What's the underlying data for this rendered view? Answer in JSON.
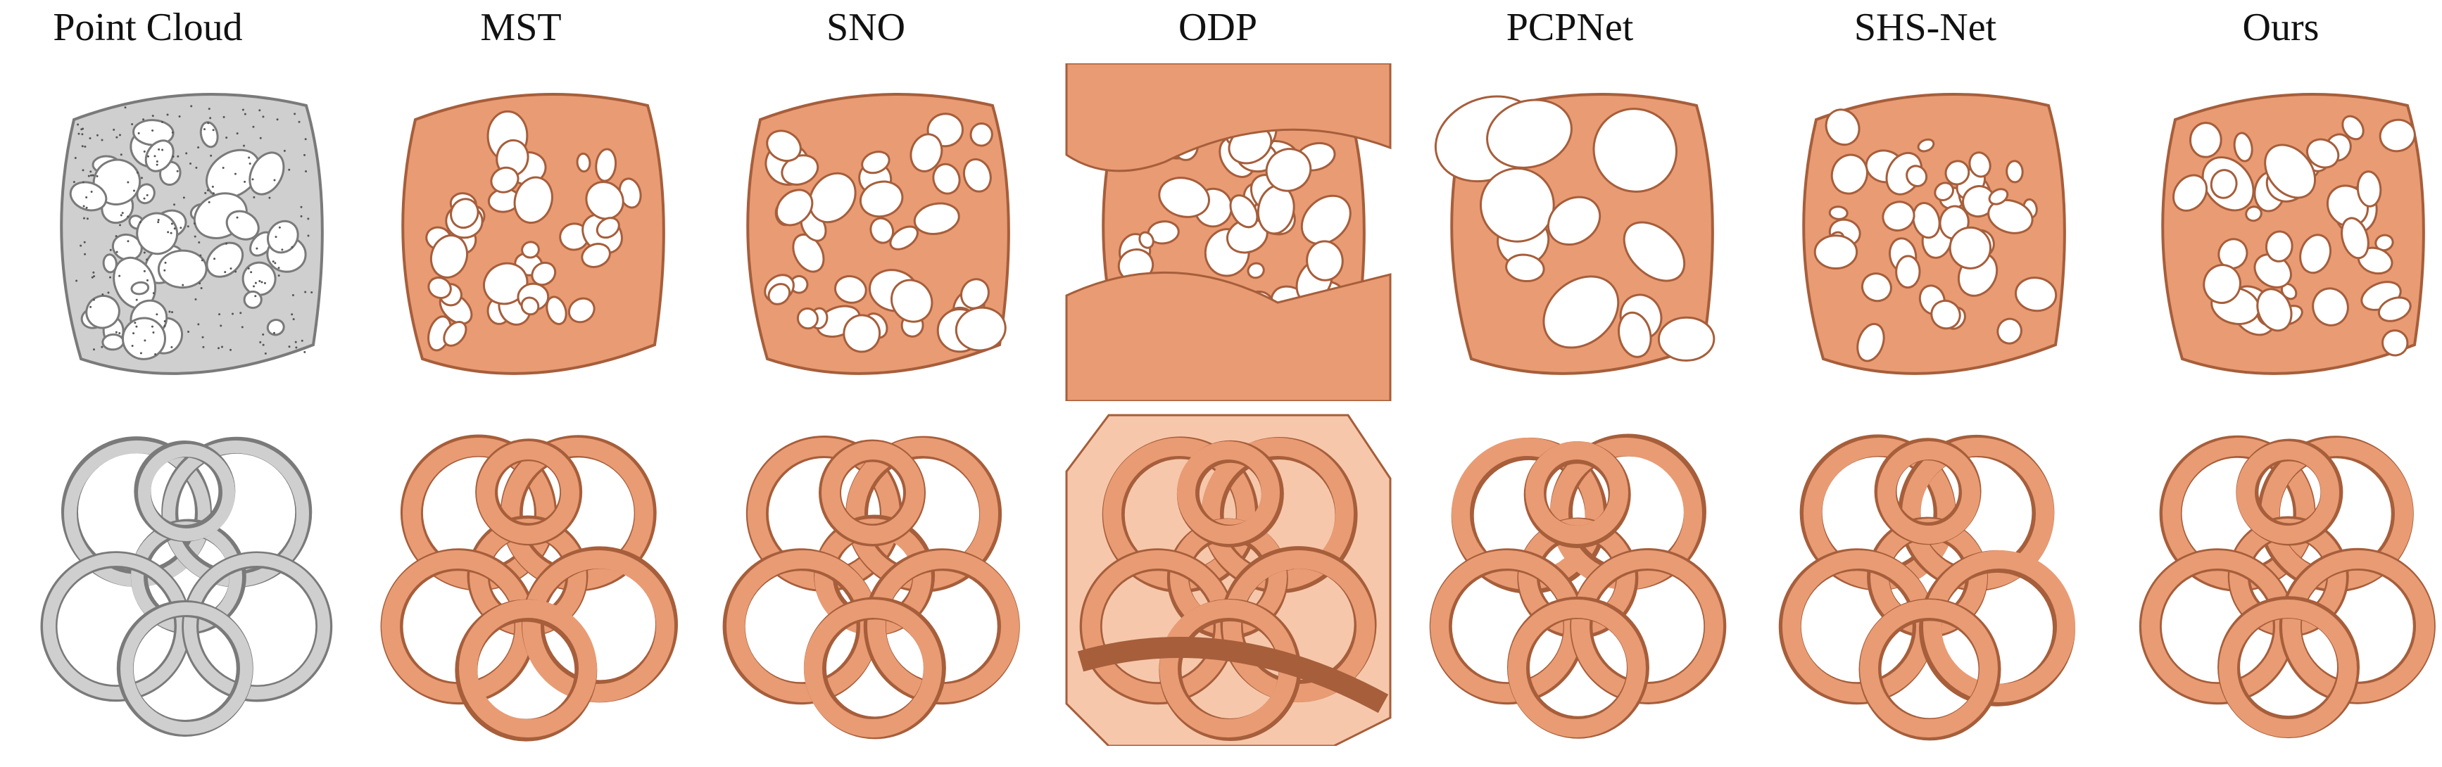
{
  "figure": {
    "columns": [
      {
        "title": "Point Cloud",
        "kind": "point-cloud"
      },
      {
        "title": "MST",
        "kind": "surface"
      },
      {
        "title": "SNO",
        "kind": "surface"
      },
      {
        "title": "ODP",
        "kind": "surface-noisy"
      },
      {
        "title": "PCPNet",
        "kind": "surface-smooth"
      },
      {
        "title": "SHS-Net",
        "kind": "surface"
      },
      {
        "title": "Ours",
        "kind": "surface"
      }
    ],
    "rows": [
      {
        "model": "voronoi-cage-model"
      },
      {
        "model": "knot-sphere-model"
      }
    ]
  },
  "colors": {
    "surface": "#e99b73",
    "surface_dark": "#a65e3b",
    "surface_light": "#f6c7ab",
    "cloud": "#cfcfcf",
    "cloud_dark": "#7a7a7a"
  }
}
